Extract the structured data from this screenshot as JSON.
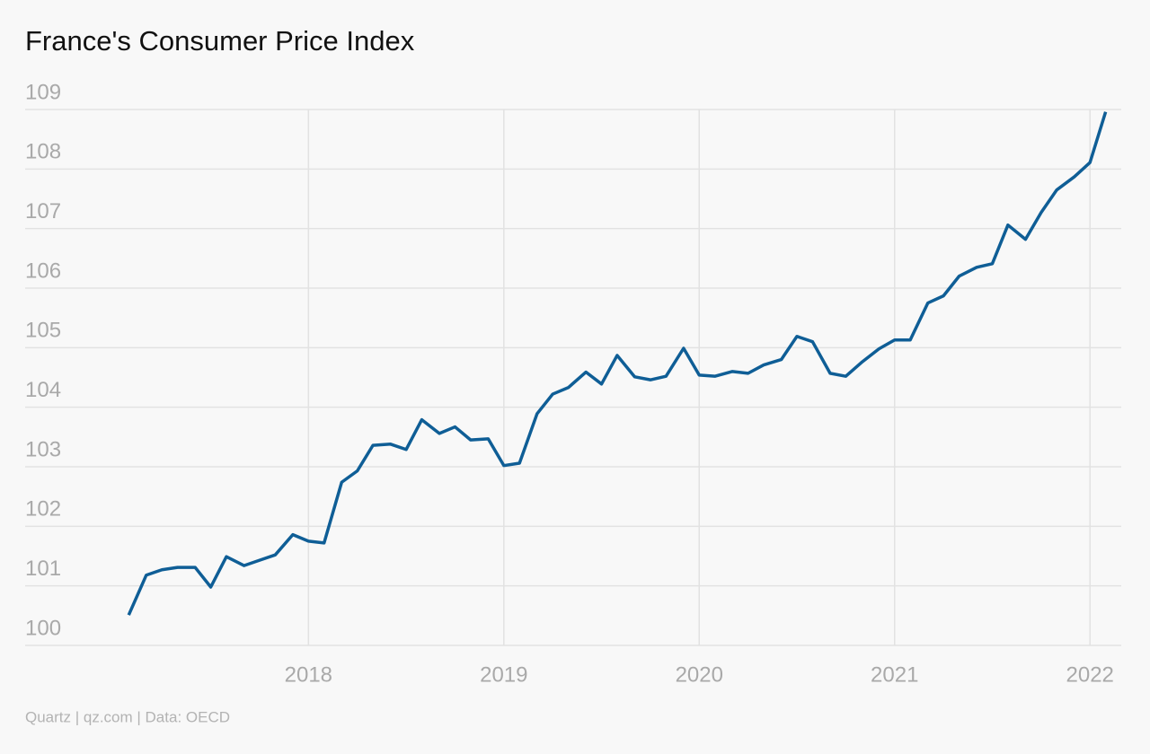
{
  "chart_data": {
    "type": "line",
    "title": "France's Consumer Price Index",
    "source": "Quartz | qz.com | Data: OECD",
    "x": [
      2017.08,
      2017.17,
      2017.25,
      2017.33,
      2017.42,
      2017.5,
      2017.58,
      2017.67,
      2017.75,
      2017.83,
      2017.92,
      2018,
      2018.08,
      2018.17,
      2018.25,
      2018.33,
      2018.42,
      2018.5,
      2018.58,
      2018.67,
      2018.75,
      2018.83,
      2018.92,
      2019,
      2019.08,
      2019.17,
      2019.25,
      2019.33,
      2019.42,
      2019.5,
      2019.58,
      2019.67,
      2019.75,
      2019.83,
      2019.92,
      2020,
      2020.08,
      2020.17,
      2020.25,
      2020.33,
      2020.42,
      2020.5,
      2020.58,
      2020.67,
      2020.75,
      2020.83,
      2020.92,
      2021,
      2021.08,
      2021.17,
      2021.25,
      2021.33,
      2021.42,
      2021.5,
      2021.58,
      2021.67,
      2021.75,
      2021.83,
      2021.92,
      2022,
      2022.08
    ],
    "series": [
      {
        "name": "CPI",
        "color": "#0f5e96",
        "values": [
          100.51,
          101.18,
          101.27,
          101.31,
          101.31,
          100.98,
          101.49,
          101.34,
          101.43,
          101.52,
          101.86,
          101.75,
          101.72,
          102.74,
          102.93,
          103.36,
          103.38,
          103.29,
          103.79,
          103.56,
          103.67,
          103.45,
          103.47,
          103.02,
          103.06,
          103.89,
          104.22,
          104.33,
          104.59,
          104.39,
          104.87,
          104.51,
          104.46,
          104.52,
          104.99,
          104.54,
          104.52,
          104.6,
          104.57,
          104.71,
          104.8,
          105.19,
          105.1,
          104.57,
          104.52,
          104.75,
          104.98,
          105.13,
          105.13,
          105.75,
          105.87,
          106.2,
          106.35,
          106.41,
          107.06,
          106.82,
          107.27,
          107.65,
          107.87,
          108.11,
          108.96
        ]
      }
    ],
    "xlim": [
      2016.55,
      2022.16
    ],
    "xticks": [
      2018,
      2019,
      2020,
      2021,
      2022
    ],
    "ylim": [
      100,
      109
    ],
    "yticks": [
      100,
      101,
      102,
      103,
      104,
      105,
      106,
      107,
      108,
      109
    ],
    "grid": true
  }
}
